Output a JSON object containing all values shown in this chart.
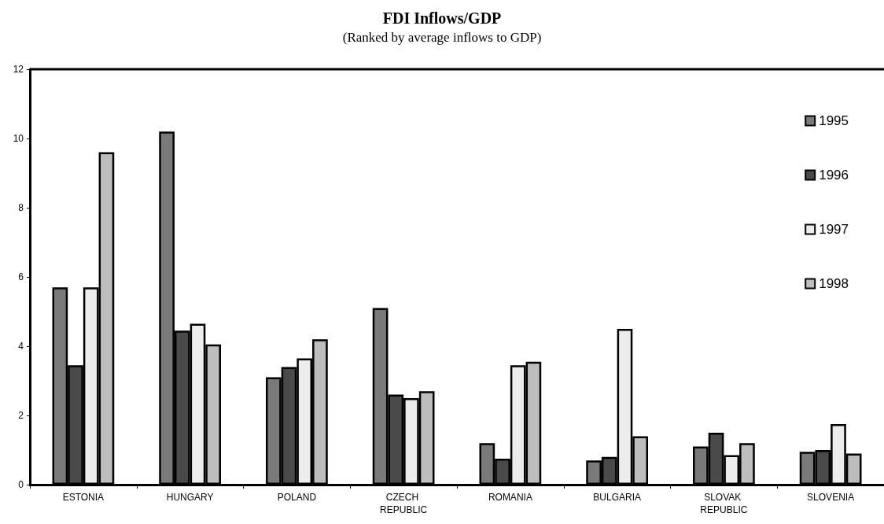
{
  "chart_data": {
    "type": "bar",
    "title": "FDI Inflows/GDP",
    "subtitle": "(Ranked by average inflows to GDP)",
    "categories": [
      "ESTONIA",
      "HUNGARY",
      "POLAND",
      "CZECH REPUBLIC",
      "ROMANIA",
      "BULGARIA",
      "SLOVAK REPUBLIC",
      "SLOVENIA"
    ],
    "series": [
      {
        "name": "1995",
        "color": "#7a7a7a",
        "values": [
          5.7,
          10.2,
          3.1,
          5.1,
          1.2,
          0.7,
          1.1,
          0.95
        ]
      },
      {
        "name": "1996",
        "color": "#4a4a4a",
        "values": [
          3.45,
          4.45,
          3.4,
          2.6,
          0.75,
          0.8,
          1.5,
          1.0
        ]
      },
      {
        "name": "1997",
        "color": "#ececec",
        "values": [
          5.7,
          4.65,
          3.65,
          2.5,
          3.45,
          4.5,
          0.85,
          1.75
        ]
      },
      {
        "name": "1998",
        "color": "#bdbdbd",
        "values": [
          9.6,
          4.05,
          4.2,
          2.7,
          3.55,
          1.4,
          1.2,
          0.9
        ]
      }
    ],
    "ylim": [
      0,
      12
    ],
    "yticks": [
      0,
      2,
      4,
      6,
      8,
      10,
      12
    ],
    "grid": false,
    "legend": "top right"
  }
}
